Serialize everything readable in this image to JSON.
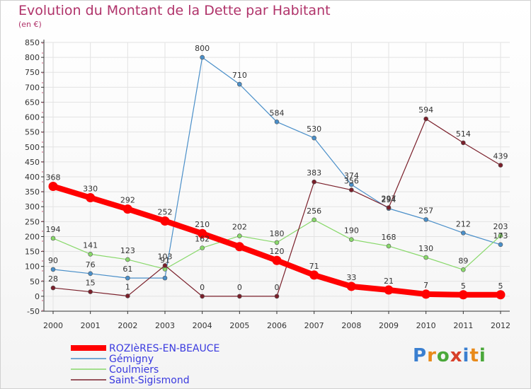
{
  "chart_data": {
    "type": "line",
    "title": "Evolution du Montant de la Dette par Habitant",
    "subtitle": "(en €)",
    "x": [
      "2000",
      "2001",
      "2002",
      "2003",
      "2004",
      "2005",
      "2006",
      "2007",
      "2008",
      "2009",
      "2010",
      "2011",
      "2012"
    ],
    "ylim": [
      -50,
      850
    ],
    "yticks": [
      -50,
      0,
      50,
      100,
      150,
      200,
      250,
      300,
      350,
      400,
      450,
      500,
      550,
      600,
      650,
      700,
      750,
      800,
      850
    ],
    "grid": true,
    "legend_position": "bottom-left",
    "series": [
      {
        "name": "ROZIèRES-EN-BEAUCE",
        "color": "#ff0000",
        "values": [
          368,
          330,
          292,
          252,
          210,
          166,
          120,
          71,
          33,
          21,
          7,
          5,
          5
        ],
        "labels": [
          "368",
          "330",
          "292",
          "252",
          "210",
          "",
          "120",
          "71",
          "33",
          "21",
          "7",
          "5",
          "5"
        ]
      },
      {
        "name": "Gémigny",
        "color": "#4a8fc9",
        "values": [
          90,
          76,
          61,
          61,
          800,
          710,
          584,
          530,
          374,
          294,
          257,
          212,
          173
        ],
        "labels": [
          "90",
          "76",
          "61",
          "",
          "800",
          "710",
          "584",
          "530",
          "374",
          "294",
          "257",
          "212",
          "173"
        ]
      },
      {
        "name": "Coulmiers",
        "color": "#88d86a",
        "values": [
          194,
          141,
          123,
          91,
          162,
          202,
          180,
          256,
          190,
          168,
          130,
          89,
          203
        ],
        "labels": [
          "194",
          "141",
          "123",
          "91",
          "162",
          "202",
          "180",
          "256",
          "190",
          "168",
          "130",
          "89",
          "203"
        ]
      },
      {
        "name": "Saint-Sigismond",
        "color": "#7a1f2a",
        "values": [
          28,
          15,
          1,
          103,
          0,
          0,
          0,
          383,
          356,
          297,
          594,
          514,
          439
        ],
        "labels": [
          "28",
          "15",
          "1",
          "103",
          "0",
          "0",
          "0",
          "383",
          "356",
          "297",
          "594",
          "514",
          "439"
        ]
      }
    ]
  },
  "logo": {
    "text": "Proxiti"
  }
}
